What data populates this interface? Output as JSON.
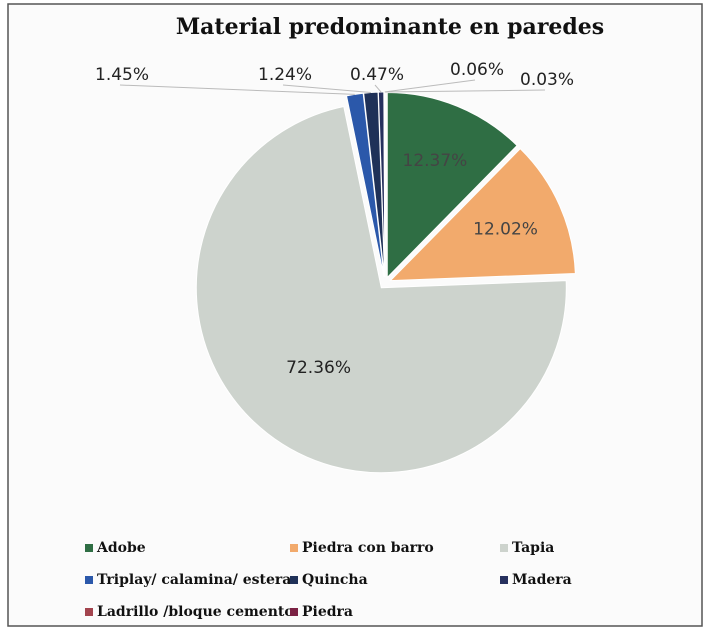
{
  "chart_data": {
    "type": "pie",
    "title": "Material predominante en paredes",
    "categories": [
      "Adobe",
      "Piedra con barro",
      "Tapia",
      "Triplay/ calamina/ estera",
      "Quincha",
      "Madera",
      "Ladrillo /bloque cemento",
      "Piedra"
    ],
    "values": [
      12.37,
      12.02,
      72.36,
      1.45,
      1.24,
      0.47,
      0.06,
      0.03
    ],
    "value_labels": [
      "12.37%",
      "12.02%",
      "72.36%",
      "1.45%",
      "1.24%",
      "0.47%",
      "0.06%",
      "0.03%"
    ],
    "colors": [
      "#2f6e44",
      "#f2aa6c",
      "#cdd3cd",
      "#2b58aa",
      "#1f3158",
      "#26305e",
      "#a3444e",
      "#7b2244"
    ],
    "legend": "bottom"
  }
}
